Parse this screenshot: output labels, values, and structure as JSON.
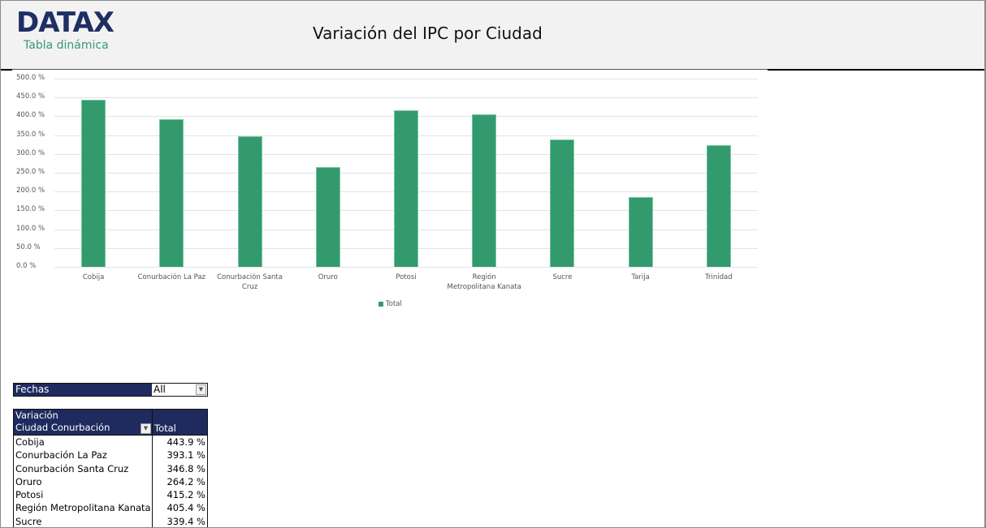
{
  "header": {
    "logo": "DATAX",
    "subtitle": "Tabla dinámica",
    "title": "Variación del IPC por Ciudad"
  },
  "colors": {
    "bar": "#339a6e",
    "brand_navy": "#1f2f63",
    "brand_green": "#3a9a72",
    "pivot_header": "#1f2b5e"
  },
  "chart_data": {
    "type": "bar",
    "title": "Variación del IPC por Ciudad",
    "xlabel": "",
    "ylabel": "",
    "categories": [
      "Cobija",
      "Conurbación La Paz",
      "Conurbación Santa Cruz",
      "Oruro",
      "Potosi",
      "Región Metropolitana Kanata",
      "Sucre",
      "Tarija",
      "Trinidad"
    ],
    "series": [
      {
        "name": "Total",
        "values": [
          443.9,
          393.1,
          346.8,
          264.2,
          415.2,
          405.4,
          339.4,
          186.0,
          323.0
        ]
      }
    ],
    "ylim": [
      0,
      500
    ],
    "yticks": [
      "0.0 %",
      "50.0 %",
      "100.0 %",
      "150.0 %",
      "200.0 %",
      "250.0 %",
      "300.0 %",
      "350.0 %",
      "400.0 %",
      "450.0 %",
      "500.0 %"
    ],
    "grid": true,
    "legend_position": "bottom",
    "legend": [
      "Total"
    ]
  },
  "chart": {
    "xlabels": [
      [
        "Cobija"
      ],
      [
        "Conurbación La Paz"
      ],
      [
        "Conurbación Santa",
        "Cruz"
      ],
      [
        "Oruro"
      ],
      [
        "Potosi"
      ],
      [
        "Región",
        "Metropolitana Kanata"
      ],
      [
        "Sucre"
      ],
      [
        "Tarija"
      ],
      [
        "Trinidad"
      ]
    ],
    "legend_label": "Total"
  },
  "filter": {
    "label": "Fechas",
    "value": "All"
  },
  "pivot": {
    "header_row1": "Variación",
    "header_col1": "Ciudad Conurbación",
    "header_col2": "Total",
    "rows": [
      {
        "city": "Cobija",
        "total": "443.9 %"
      },
      {
        "city": "Conurbación La Paz",
        "total": "393.1 %"
      },
      {
        "city": "Conurbación Santa Cruz",
        "total": "346.8 %"
      },
      {
        "city": "Oruro",
        "total": "264.2 %"
      },
      {
        "city": "Potosi",
        "total": "415.2 %"
      },
      {
        "city": "Región Metropolitana Kanata",
        "total": "405.4 %"
      },
      {
        "city": "Sucre",
        "total": "339.4 %"
      }
    ]
  }
}
